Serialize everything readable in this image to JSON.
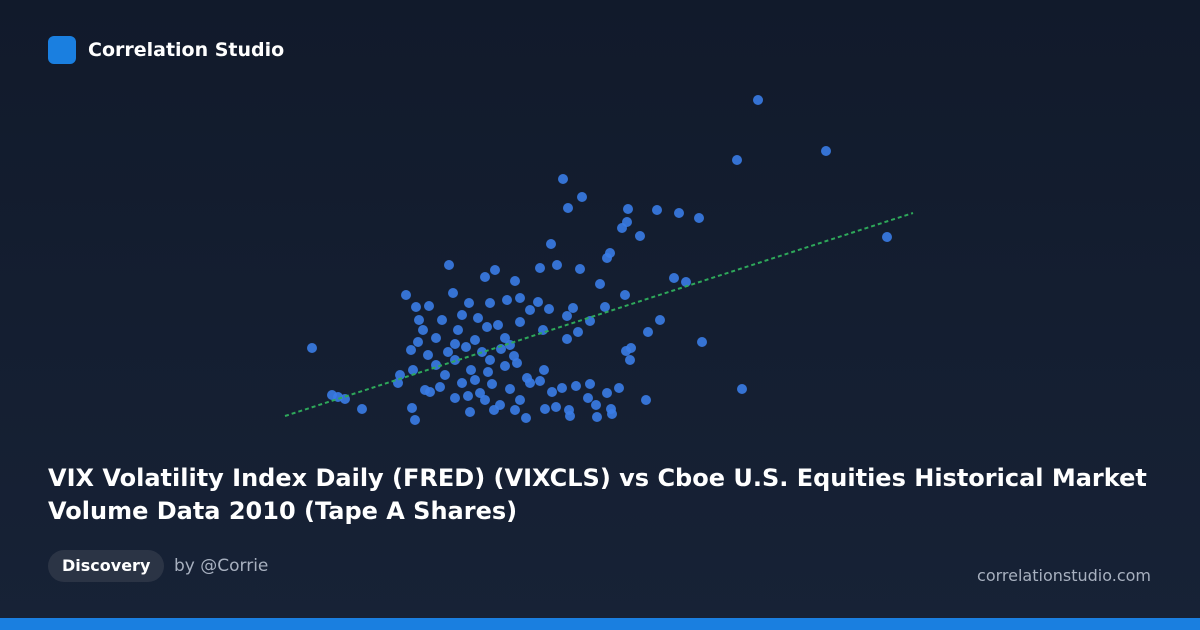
{
  "header": {
    "brand": "Correlation Studio"
  },
  "chart_data": {
    "type": "scatter",
    "title": "VIX Volatility Index Daily (FRED) (VIXCLS) vs Cboe U.S. Equities Historical Market Volume Data 2010 (Tape A Shares)",
    "color": "#3a7ce6",
    "xlim": [
      0,
      640
    ],
    "ylim": [
      0,
      340
    ],
    "x": [
      478,
      546,
      457,
      283,
      302,
      288,
      348,
      377,
      399,
      419,
      347,
      342,
      360,
      607,
      271,
      330,
      327,
      169,
      260,
      277,
      300,
      215,
      205,
      235,
      320,
      394,
      406,
      126,
      345,
      173,
      136,
      149,
      189,
      210,
      227,
      240,
      258,
      269,
      293,
      325,
      287,
      310,
      380,
      368,
      143,
      162,
      182,
      198,
      218,
      240,
      263,
      287,
      298,
      422,
      32,
      131,
      148,
      168,
      186,
      202,
      221,
      234,
      351,
      346,
      350,
      156,
      175,
      191,
      208,
      225,
      237,
      247,
      264,
      120,
      133,
      118,
      145,
      160,
      182,
      195,
      212,
      230,
      250,
      260,
      282,
      296,
      310,
      339,
      327,
      462,
      52,
      58,
      65,
      82,
      132,
      135,
      150,
      175,
      188,
      205,
      220,
      235,
      246,
      265,
      276,
      289,
      290,
      316,
      317,
      331,
      332,
      366,
      210,
      178,
      195,
      225,
      175,
      200,
      240,
      308,
      214,
      156,
      138,
      165,
      207,
      250,
      272,
      139,
      190,
      230
    ],
    "y": [
      330,
      279,
      270,
      251,
      233,
      222,
      221,
      220,
      217,
      212,
      208,
      202,
      194,
      193,
      186,
      177,
      172,
      165,
      162,
      165,
      161,
      160,
      153,
      149,
      146,
      152,
      148,
      135,
      135,
      137,
      123,
      124,
      127,
      127,
      130,
      132,
      128,
      121,
      122,
      123,
      114,
      109,
      110,
      98,
      100,
      110,
      115,
      112,
      105,
      108,
      100,
      91,
      98,
      88,
      82,
      80,
      75,
      78,
      83,
      78,
      81,
      74,
      82,
      79,
      70,
      65,
      70,
      60,
      58,
      64,
      67,
      52,
      60,
      55,
      60,
      47,
      40,
      43,
      47,
      50,
      46,
      41,
      47,
      49,
      42,
      44,
      46,
      42,
      37,
      41,
      35,
      33,
      31,
      21,
      22,
      10,
      38,
      32,
      34,
      30,
      25,
      20,
      12,
      21,
      23,
      20,
      14,
      25,
      13,
      21,
      16,
      30,
      70,
      100,
      90,
      92,
      86,
      37,
      30,
      32,
      20,
      92,
      88,
      55,
      103,
      120,
      38,
      110,
      18,
      85
    ],
    "trend": {
      "x": [
        5,
        633
      ],
      "y": [
        14,
        217
      ],
      "color": "#2ea85a"
    }
  },
  "footer": {
    "tag": "Discovery",
    "author": "by @Corrie",
    "site": "correlationstudio.com"
  }
}
